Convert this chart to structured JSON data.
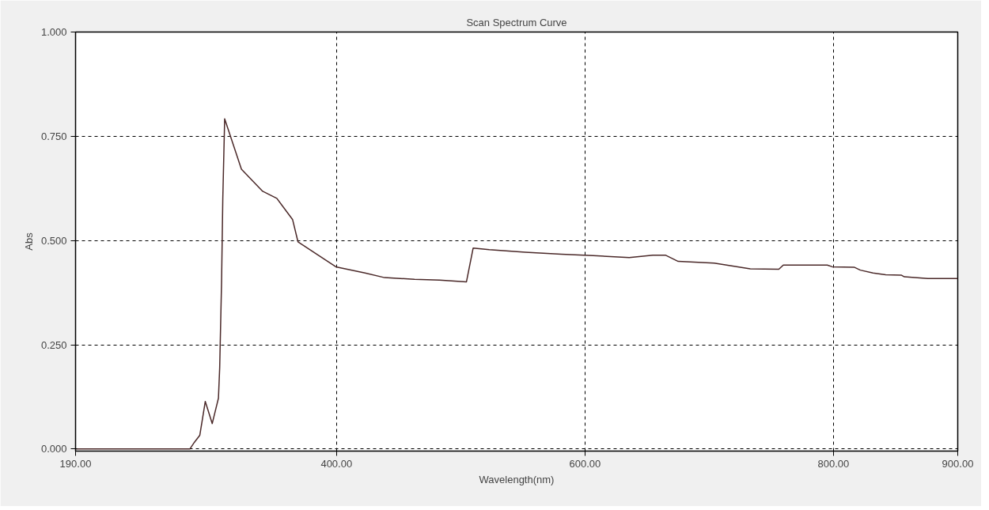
{
  "chart_data": {
    "type": "line",
    "title": "Scan Spectrum Curve",
    "xlabel": "Wavelength(nm)",
    "ylabel": "Abs",
    "xlim": [
      190,
      900
    ],
    "ylim": [
      -0.005,
      1.0
    ],
    "xticks": [
      {
        "value": 190,
        "label": "190.00"
      },
      {
        "value": 400,
        "label": "400.00"
      },
      {
        "value": 600,
        "label": "600.00"
      },
      {
        "value": 800,
        "label": "800.00"
      },
      {
        "value": 900,
        "label": "900.00"
      }
    ],
    "yticks": [
      {
        "value": 0,
        "label": "0.000"
      },
      {
        "value": 0.25,
        "label": "0.250"
      },
      {
        "value": 0.5,
        "label": "0.500"
      },
      {
        "value": 0.75,
        "label": "0.750"
      },
      {
        "value": 1.0,
        "label": "1.000"
      }
    ],
    "grid": true,
    "series": [
      {
        "color": "#4a2828",
        "x": [
          190,
          282,
          285.6,
          290,
          294.4,
          300,
          305,
          306,
          307.5,
          308.5,
          310,
          323.5,
          340.6,
          352,
          364.7,
          369,
          399.5,
          423,
          438.7,
          462.8,
          483,
          504.6,
          510,
          523,
          552,
          581,
          606.5,
          635.6,
          654.6,
          664.7,
          675,
          704,
          723,
          733,
          756,
          759.6,
          795,
          799,
          816.6,
          821.6,
          831.8,
          842,
          854.5,
          857,
          876,
          900
        ],
        "values": [
          0.0,
          0.0,
          0.016,
          0.033,
          0.114,
          0.061,
          0.122,
          0.195,
          0.4,
          0.6,
          0.792,
          0.671,
          0.618,
          0.601,
          0.55,
          0.497,
          0.437,
          0.422,
          0.411,
          0.407,
          0.405,
          0.401,
          0.482,
          0.478,
          0.472,
          0.467,
          0.464,
          0.459,
          0.465,
          0.465,
          0.45,
          0.446,
          0.437,
          0.432,
          0.431,
          0.441,
          0.441,
          0.437,
          0.436,
          0.429,
          0.422,
          0.418,
          0.417,
          0.413,
          0.409,
          0.409
        ]
      }
    ]
  }
}
